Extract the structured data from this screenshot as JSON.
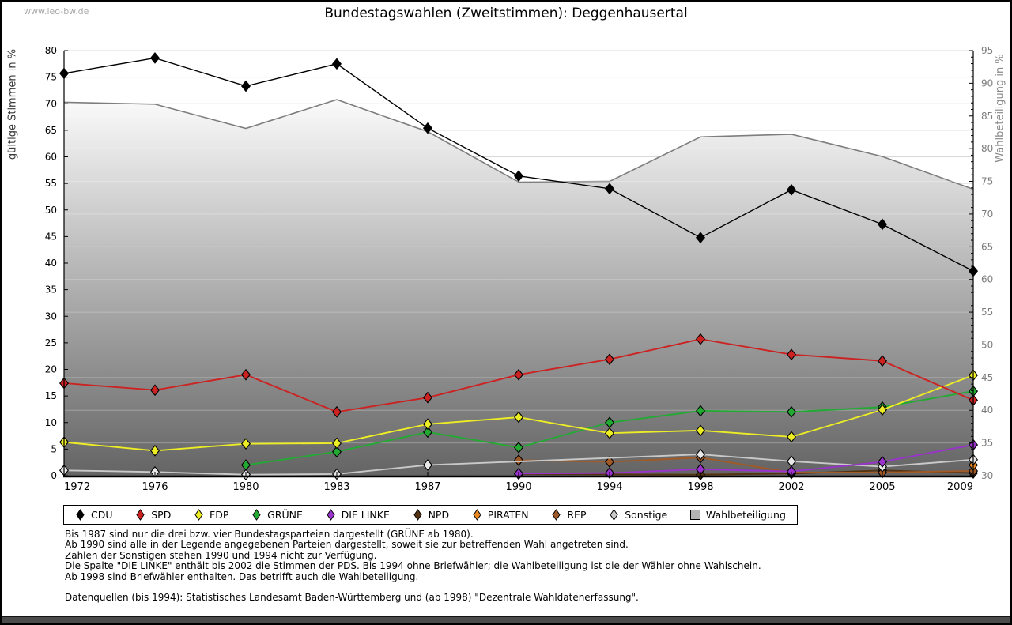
{
  "page": {
    "watermark": "www.leo-bw.de",
    "title": "Bundestagswahlen (Zweitstimmen): Deggenhausertal"
  },
  "axes": {
    "left_label": "gültige Stimmen in %",
    "right_label": "Wahlbeteiligung in %"
  },
  "notes": [
    "Bis 1987 sind nur die drei bzw. vier Bundestagsparteien dargestellt (GRÜNE ab 1980).",
    "Ab 1990 sind alle in der Legende angegebenen Parteien dargestellt, soweit sie zur betreffenden Wahl angetreten sind.",
    "Zahlen der Sonstigen stehen 1990 und 1994 nicht zur Verfügung.",
    "Die Spalte \"DIE LINKE\" enthält bis 2002 die Stimmen der PDS. Bis 1994 ohne Briefwähler; die Wahlbeteiligung ist die der Wähler ohne Wahlschein.",
    "Ab 1998 sind Briefwähler enthalten. Das betrifft auch die Wahlbeteiligung.",
    "",
    "Datenquellen (bis 1994): Statistisches Landesamt Baden-Württemberg und (ab 1998) \"Dezentrale Wahldatenerfassung\"."
  ],
  "chart_data": {
    "type": "line",
    "title": "Bundestagswahlen (Zweitstimmen): Deggenhausertal",
    "x_categories": [
      "1972",
      "1976",
      "1980",
      "1983",
      "1987",
      "1990",
      "1994",
      "1998",
      "2002",
      "2005",
      "2009"
    ],
    "y_left": {
      "label": "gültige Stimmen in %",
      "min": 0,
      "max": 80,
      "tick": 5
    },
    "y_right": {
      "label": "Wahlbeteiligung in %",
      "min": 30,
      "max": 95,
      "tick": 5,
      "minor_tick": 1
    },
    "grid": "horizontal",
    "legend_position": "bottom",
    "series": [
      {
        "name": "CDU",
        "color": "#000000",
        "axis": "left",
        "values": [
          75.7,
          78.6,
          73.3,
          77.5,
          65.4,
          56.4,
          54.0,
          44.8,
          53.8,
          47.3,
          38.5
        ]
      },
      {
        "name": "SPD",
        "color": "#cc2222",
        "axis": "left",
        "values": [
          17.4,
          16.1,
          19.0,
          12.0,
          14.7,
          19.0,
          21.9,
          25.7,
          22.8,
          21.6,
          14.2
        ]
      },
      {
        "name": "FDP",
        "color": "#eded25",
        "axis": "left",
        "values": [
          6.3,
          4.7,
          6.0,
          6.1,
          9.7,
          11.0,
          8.0,
          8.5,
          7.3,
          12.4,
          18.9
        ]
      },
      {
        "name": "GRÜNE",
        "color": "#22aa33",
        "axis": "left",
        "values": [
          null,
          null,
          2.0,
          4.5,
          8.2,
          5.3,
          10.0,
          12.2,
          12.0,
          12.9,
          15.9
        ]
      },
      {
        "name": "DIE LINKE",
        "color": "#9933cc",
        "axis": "left",
        "values": [
          null,
          null,
          null,
          null,
          null,
          0.4,
          0.5,
          1.2,
          0.8,
          2.6,
          5.8
        ]
      },
      {
        "name": "NPD",
        "color": "#553311",
        "axis": "left",
        "values": [
          null,
          null,
          null,
          null,
          null,
          0.3,
          null,
          0.2,
          0.4,
          1.0,
          0.5
        ]
      },
      {
        "name": "PIRATEN",
        "color": "#e88820",
        "axis": "left",
        "values": [
          null,
          null,
          null,
          null,
          null,
          null,
          null,
          null,
          null,
          null,
          2.0
        ]
      },
      {
        "name": "REP",
        "color": "#a05a28",
        "axis": "left",
        "values": [
          null,
          null,
          null,
          null,
          null,
          2.9,
          2.6,
          3.4,
          0.6,
          0.6,
          0.9
        ]
      },
      {
        "name": "Sonstige",
        "color": "#c9c9c9",
        "marker_fill": "#e8e8e8",
        "axis": "left",
        "values": [
          1.0,
          0.7,
          0.2,
          0.3,
          2.0,
          null,
          null,
          4.0,
          2.7,
          1.7,
          3.0
        ]
      }
    ],
    "area_series": {
      "name": "Wahlbeteiligung",
      "axis": "right",
      "stroke": "#7d7d7d",
      "fill_top": "#ffffff",
      "fill_bottom": "#646464",
      "legend_swatch": "#b4b4b4",
      "values": [
        87.1,
        86.8,
        83.1,
        87.5,
        82.6,
        74.9,
        75.0,
        81.8,
        82.2,
        78.8,
        73.8
      ]
    }
  }
}
